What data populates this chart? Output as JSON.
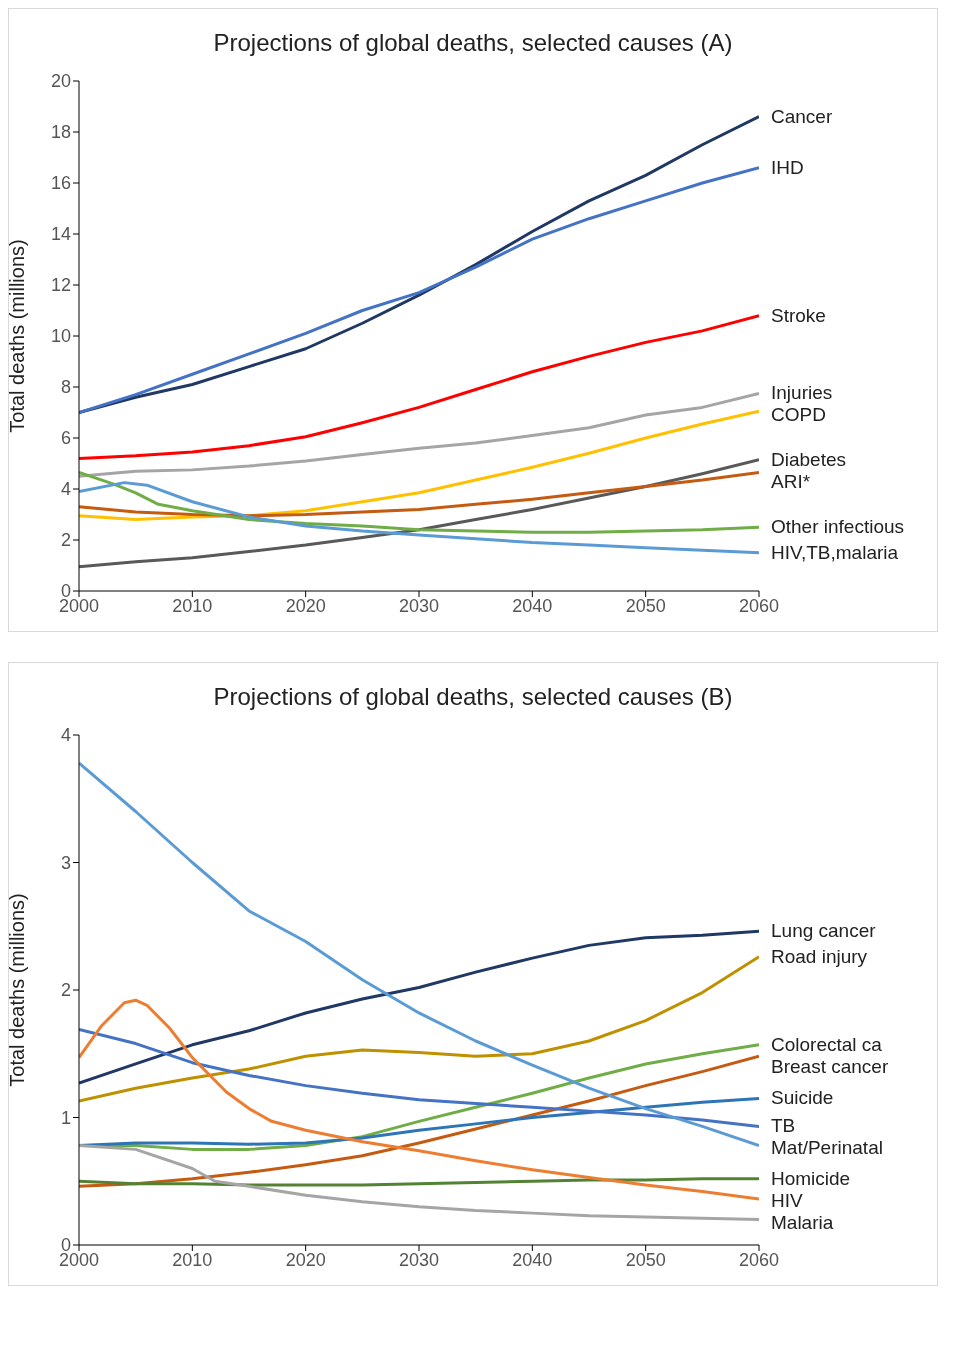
{
  "chart_data": [
    {
      "type": "line",
      "title": "Projections of global deaths, selected causes (A)",
      "ylabel": "Total deaths (millions)",
      "x": [
        2000,
        2005,
        2010,
        2015,
        2020,
        2025,
        2030,
        2035,
        2040,
        2045,
        2050,
        2055,
        2060
      ],
      "xlim": [
        2000,
        2060
      ],
      "xticks": [
        2000,
        2010,
        2020,
        2030,
        2040,
        2050,
        2060
      ],
      "ylim": [
        0,
        20
      ],
      "yticks": [
        0,
        2,
        4,
        6,
        8,
        10,
        12,
        14,
        16,
        18,
        20
      ],
      "grid": false,
      "legend": false,
      "marker": "none",
      "series": [
        {
          "name": "Cancer",
          "color": "#203864",
          "values": [
            7.0,
            7.6,
            8.1,
            8.8,
            9.5,
            10.5,
            11.6,
            12.8,
            14.1,
            15.3,
            16.3,
            17.5,
            18.6
          ]
        },
        {
          "name": "IHD",
          "color": "#4472c4",
          "values": [
            7.0,
            7.7,
            8.5,
            9.3,
            10.1,
            11.0,
            11.7,
            12.7,
            13.8,
            14.6,
            15.3,
            16.0,
            16.6
          ]
        },
        {
          "name": "Stroke",
          "color": "#ff0000",
          "values": [
            5.2,
            5.3,
            5.45,
            5.7,
            6.05,
            6.6,
            7.2,
            7.9,
            8.6,
            9.2,
            9.75,
            10.2,
            10.8
          ]
        },
        {
          "name": "Injuries",
          "color": "#a5a5a5",
          "values": [
            4.5,
            4.7,
            4.75,
            4.9,
            5.1,
            5.35,
            5.6,
            5.8,
            6.1,
            6.4,
            6.9,
            7.2,
            7.75
          ]
        },
        {
          "name": "COPD",
          "color": "#ffc000",
          "values": [
            2.95,
            2.8,
            2.9,
            2.95,
            3.15,
            3.5,
            3.85,
            4.35,
            4.85,
            5.4,
            6.0,
            6.55,
            7.05
          ]
        },
        {
          "name": "Diabetes",
          "color": "#595959",
          "values": [
            0.95,
            1.15,
            1.3,
            1.55,
            1.8,
            2.1,
            2.4,
            2.8,
            3.2,
            3.65,
            4.1,
            4.6,
            5.15
          ]
        },
        {
          "name": "ARI*",
          "color": "#c55a11",
          "values": [
            3.3,
            3.1,
            3.0,
            2.95,
            3.0,
            3.1,
            3.2,
            3.4,
            3.6,
            3.85,
            4.1,
            4.35,
            4.65
          ]
        },
        {
          "name": "Other infectious",
          "color": "#70ad47",
          "x": [
            2000,
            2003,
            2005,
            2007,
            2010,
            2015,
            2020,
            2025,
            2030,
            2035,
            2040,
            2045,
            2050,
            2055,
            2060
          ],
          "values": [
            4.65,
            4.2,
            3.85,
            3.4,
            3.15,
            2.8,
            2.65,
            2.55,
            2.4,
            2.35,
            2.3,
            2.3,
            2.35,
            2.4,
            2.5
          ]
        },
        {
          "name": "HIV,TB,malaria",
          "color": "#5b9bd5",
          "x": [
            2000,
            2004,
            2006,
            2010,
            2015,
            2020,
            2025,
            2030,
            2035,
            2040,
            2045,
            2050,
            2055,
            2060
          ],
          "values": [
            3.9,
            4.25,
            4.15,
            3.5,
            2.9,
            2.55,
            2.35,
            2.2,
            2.05,
            1.9,
            1.8,
            1.7,
            1.6,
            1.5
          ]
        }
      ]
    },
    {
      "type": "line",
      "title": "Projections of global deaths, selected causes (B)",
      "ylabel": "Total deaths (millions)",
      "x": [
        2000,
        2005,
        2010,
        2015,
        2020,
        2025,
        2030,
        2035,
        2040,
        2045,
        2050,
        2055,
        2060
      ],
      "xlim": [
        2000,
        2060
      ],
      "xticks": [
        2000,
        2010,
        2020,
        2030,
        2040,
        2050,
        2060
      ],
      "ylim": [
        0,
        4
      ],
      "yticks": [
        0,
        1,
        2,
        3,
        4
      ],
      "grid": false,
      "legend": false,
      "marker": "none",
      "series": [
        {
          "name": "Lung cancer",
          "color": "#203864",
          "values": [
            1.27,
            1.42,
            1.57,
            1.68,
            1.82,
            1.93,
            2.02,
            2.14,
            2.25,
            2.35,
            2.41,
            2.43,
            2.46
          ]
        },
        {
          "name": "Road injury",
          "color": "#bf9000",
          "values": [
            1.13,
            1.23,
            1.31,
            1.38,
            1.48,
            1.53,
            1.51,
            1.48,
            1.5,
            1.6,
            1.76,
            1.98,
            2.26
          ]
        },
        {
          "name": "Colorectal ca",
          "color": "#70ad47",
          "values": [
            0.78,
            0.78,
            0.75,
            0.75,
            0.78,
            0.85,
            0.97,
            1.08,
            1.19,
            1.31,
            1.42,
            1.5,
            1.57
          ]
        },
        {
          "name": "Breast cancer",
          "color": "#c55a11",
          "values": [
            0.46,
            0.48,
            0.52,
            0.57,
            0.63,
            0.7,
            0.8,
            0.91,
            1.02,
            1.13,
            1.25,
            1.36,
            1.48
          ]
        },
        {
          "name": "Suicide",
          "color": "#2e75b6",
          "values": [
            0.78,
            0.8,
            0.8,
            0.79,
            0.8,
            0.84,
            0.9,
            0.95,
            1.0,
            1.04,
            1.08,
            1.12,
            1.15
          ]
        },
        {
          "name": "TB",
          "color": "#4472c4",
          "values": [
            1.69,
            1.58,
            1.43,
            1.33,
            1.25,
            1.19,
            1.14,
            1.11,
            1.08,
            1.05,
            1.02,
            0.98,
            0.93
          ]
        },
        {
          "name": "Mat/Perinatal",
          "color": "#5b9bd5",
          "values": [
            3.78,
            3.4,
            3.0,
            2.62,
            2.38,
            2.08,
            1.82,
            1.6,
            1.41,
            1.23,
            1.07,
            0.93,
            0.78
          ]
        },
        {
          "name": "Homicide",
          "color": "#548235",
          "values": [
            0.5,
            0.48,
            0.48,
            0.47,
            0.47,
            0.47,
            0.48,
            0.49,
            0.5,
            0.51,
            0.51,
            0.52,
            0.52
          ]
        },
        {
          "name": "HIV",
          "color": "#ed7d31",
          "x": [
            2000,
            2002,
            2004,
            2005,
            2006,
            2008,
            2010,
            2013,
            2015,
            2017,
            2020,
            2025,
            2030,
            2035,
            2040,
            2045,
            2050,
            2055,
            2060
          ],
          "values": [
            1.47,
            1.72,
            1.9,
            1.92,
            1.88,
            1.7,
            1.47,
            1.2,
            1.07,
            0.97,
            0.9,
            0.81,
            0.74,
            0.66,
            0.59,
            0.53,
            0.47,
            0.42,
            0.36
          ]
        },
        {
          "name": "Malaria",
          "color": "#a5a5a5",
          "x": [
            2000,
            2005,
            2010,
            2012,
            2015,
            2020,
            2025,
            2030,
            2035,
            2040,
            2045,
            2050,
            2055,
            2060
          ],
          "values": [
            0.78,
            0.75,
            0.6,
            0.5,
            0.46,
            0.39,
            0.34,
            0.3,
            0.27,
            0.25,
            0.23,
            0.22,
            0.21,
            0.2
          ]
        }
      ]
    }
  ]
}
